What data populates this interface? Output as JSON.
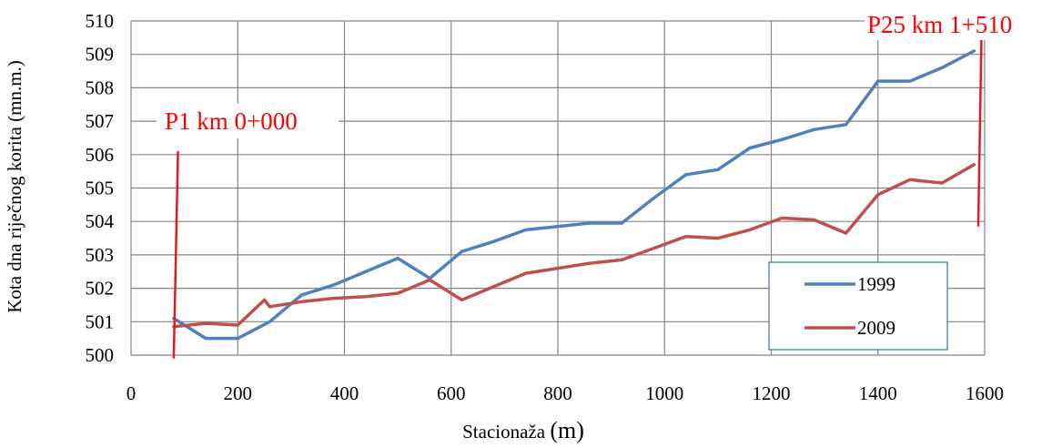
{
  "chart_data": {
    "type": "line",
    "xlabel_main": "Stacionaža ",
    "xlabel_unit": "(m)",
    "ylabel": "Kota dna riječnog korita (mn.m.)",
    "xlim": [
      0,
      1600
    ],
    "ylim": [
      500,
      510
    ],
    "x_ticks": [
      "0",
      "200",
      "400",
      "600",
      "800",
      "1000",
      "1200",
      "1400",
      "1600"
    ],
    "y_ticks": [
      "500",
      "501",
      "502",
      "503",
      "504",
      "505",
      "506",
      "507",
      "508",
      "509",
      "510"
    ],
    "grid": true,
    "legend_position": "bottom-right",
    "series": [
      {
        "name": "1999",
        "color": "#4F81BD",
        "x": [
          80,
          140,
          200,
          260,
          320,
          380,
          440,
          500,
          560,
          620,
          680,
          740,
          800,
          860,
          920,
          980,
          1040,
          1100,
          1160,
          1220,
          1280,
          1340,
          1400,
          1460,
          1520,
          1580
        ],
        "y": [
          501.1,
          500.5,
          500.5,
          501.0,
          501.8,
          502.1,
          502.5,
          502.9,
          502.3,
          503.1,
          503.4,
          503.75,
          503.85,
          503.95,
          503.95,
          504.7,
          505.4,
          505.55,
          506.2,
          506.45,
          506.75,
          506.9,
          508.2,
          508.2,
          508.6,
          509.1
        ]
      },
      {
        "name": "2009",
        "color": "#C0504D",
        "x": [
          80,
          140,
          200,
          250,
          260,
          320,
          380,
          440,
          500,
          560,
          620,
          680,
          740,
          800,
          860,
          920,
          980,
          1040,
          1100,
          1160,
          1220,
          1280,
          1340,
          1400,
          1460,
          1520,
          1580
        ],
        "y": [
          500.85,
          500.95,
          500.9,
          501.65,
          501.45,
          501.6,
          501.7,
          501.75,
          501.85,
          502.25,
          501.65,
          502.05,
          502.45,
          502.6,
          502.75,
          502.85,
          503.2,
          503.55,
          503.5,
          503.75,
          504.1,
          504.05,
          503.65,
          504.8,
          505.25,
          505.15,
          505.7
        ]
      }
    ],
    "annotations": [
      {
        "text": "P1 km 0+000",
        "color": "#FF0000"
      },
      {
        "text": "P25 km 1+510",
        "color": "#FF0000"
      }
    ],
    "markers": [
      {
        "x1": 80,
        "y1": 499.9,
        "x2": 88,
        "y2": 506.1,
        "color": "#E41A1C"
      },
      {
        "x1": 1588,
        "y1": 503.85,
        "x2": 1594,
        "y2": 509.5,
        "color": "#E41A1C"
      }
    ]
  }
}
